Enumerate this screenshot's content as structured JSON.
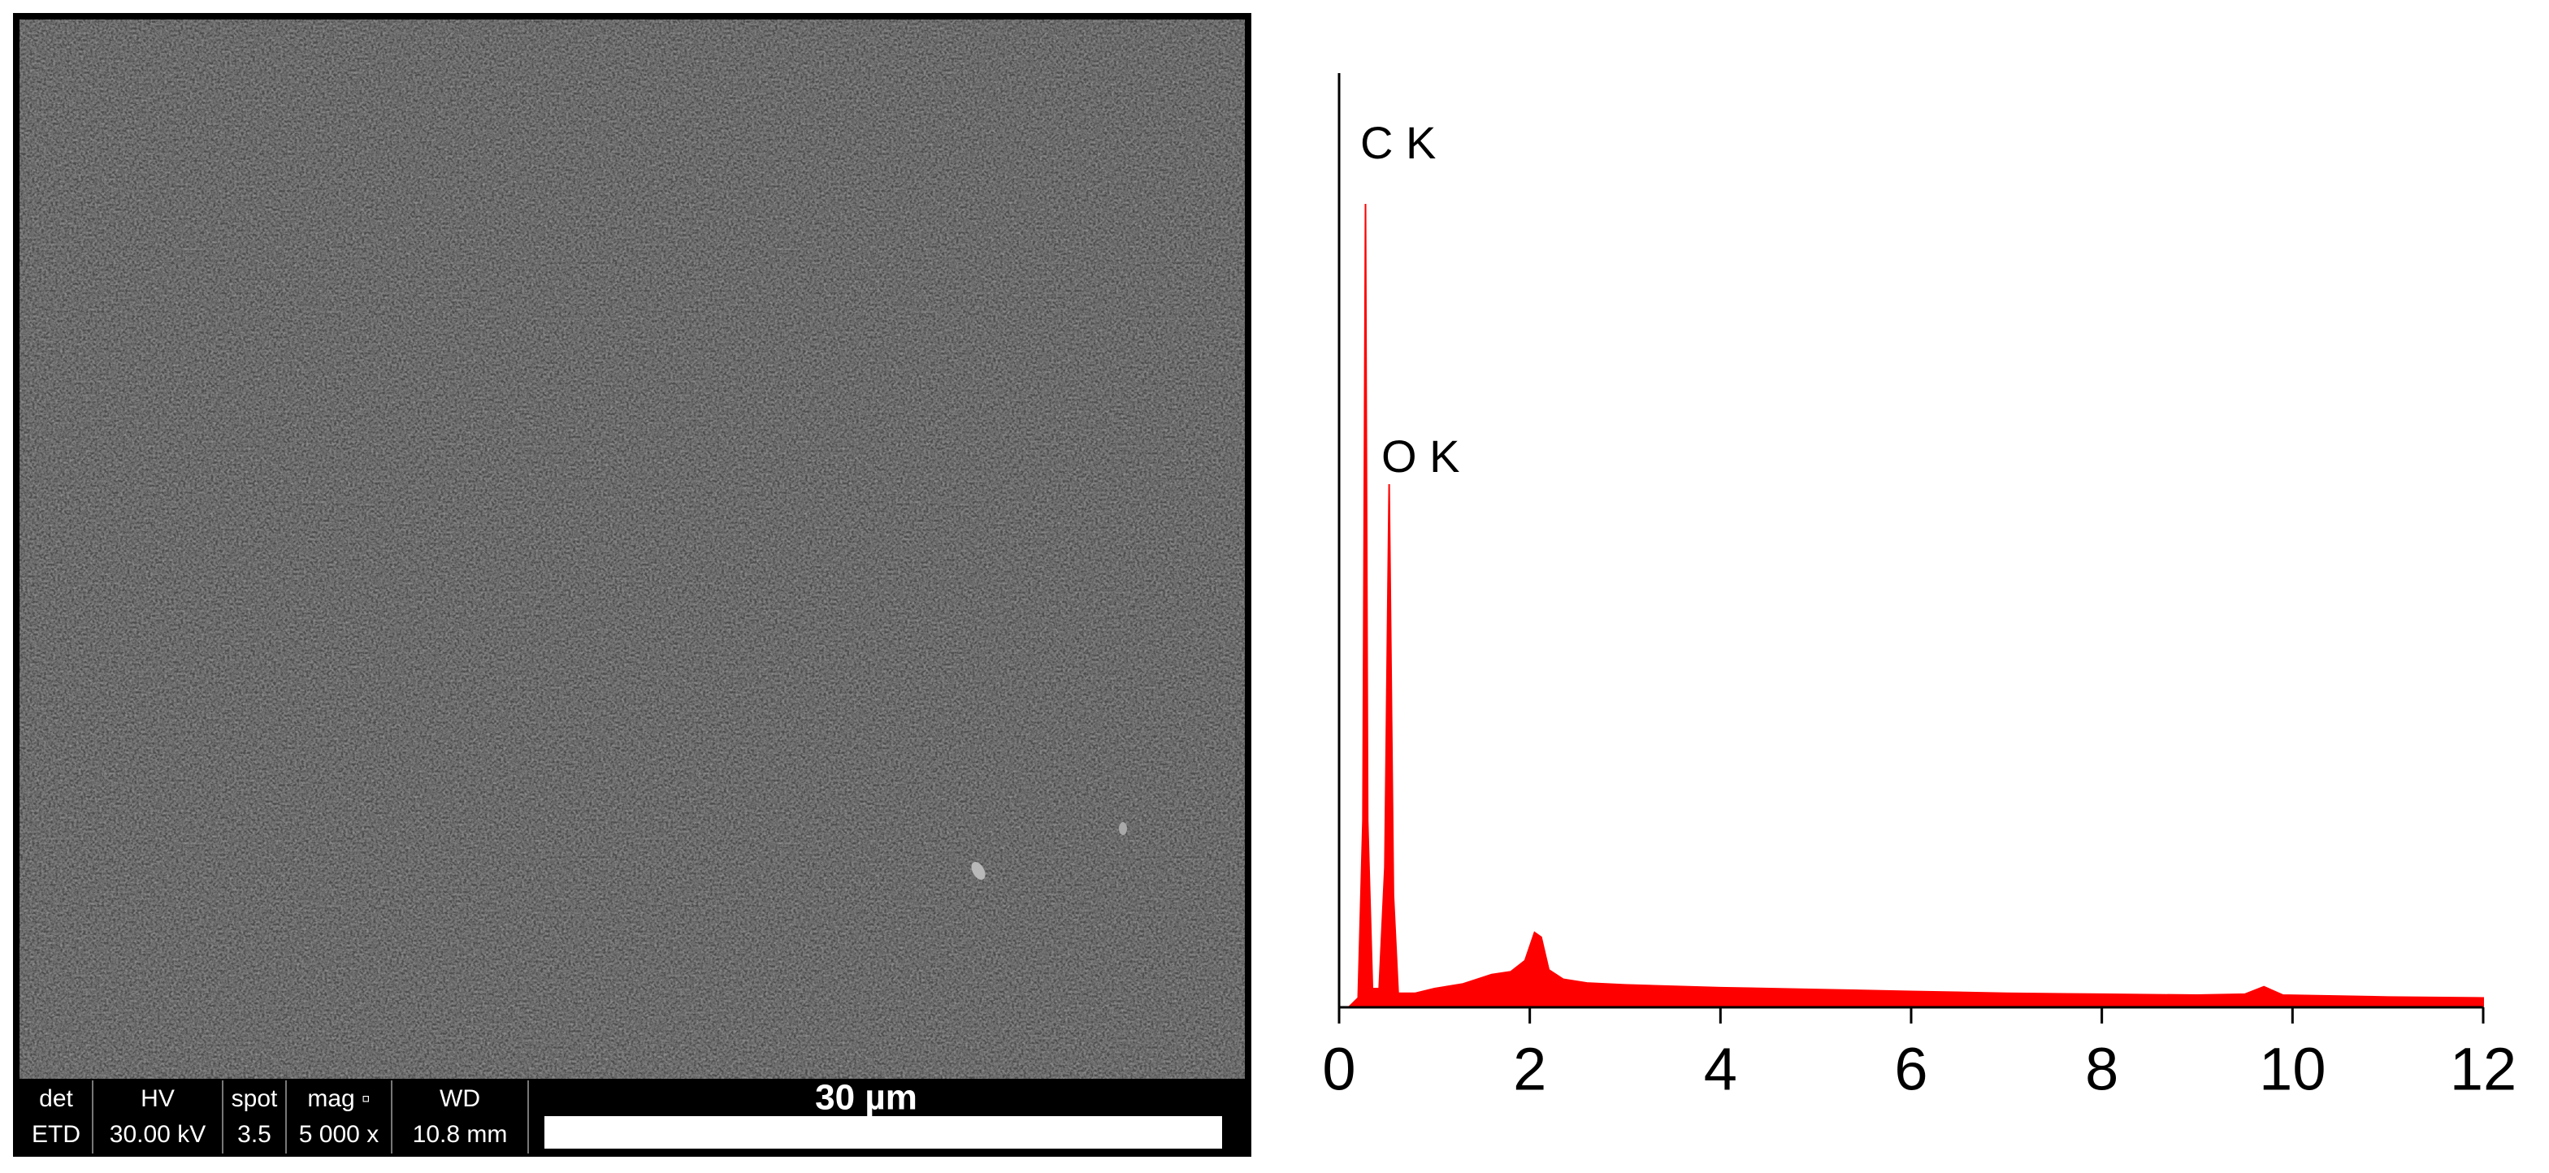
{
  "sem_panel": {
    "info_headers": [
      "det",
      "HV",
      "spot",
      "mag ▫",
      "WD"
    ],
    "info_values": [
      "ETD",
      "30.00 kV",
      "3.5",
      "5 000 x",
      "10.8 mm"
    ],
    "scale_label": "30 µm"
  },
  "chart_data": {
    "type": "area",
    "color": "#ff0000",
    "annotations": [
      "C K",
      "O K"
    ],
    "x": [
      0,
      0.1,
      0.2,
      0.25,
      0.277,
      0.3,
      0.35,
      0.42,
      0.48,
      0.525,
      0.57,
      0.62,
      0.8,
      1.0,
      1.3,
      1.6,
      1.8,
      1.95,
      2.05,
      2.12,
      2.2,
      2.35,
      2.6,
      3,
      4,
      5,
      6,
      7,
      8,
      9,
      9.5,
      9.7,
      9.9,
      10.5,
      11,
      12
    ],
    "values": [
      0,
      0,
      1,
      20,
      86,
      20,
      2,
      2,
      15,
      56,
      12,
      1.5,
      1.5,
      2,
      2.5,
      3.5,
      3.8,
      5,
      8,
      7.5,
      4,
      3,
      2.6,
      2.4,
      2.1,
      1.9,
      1.7,
      1.5,
      1.4,
      1.3,
      1.4,
      2.2,
      1.3,
      1.2,
      1.1,
      1.0
    ],
    "xlim": [
      0,
      12
    ],
    "xticks": [
      0,
      2,
      4,
      6,
      8,
      10,
      12
    ],
    "ylim": [
      0,
      100
    ]
  }
}
